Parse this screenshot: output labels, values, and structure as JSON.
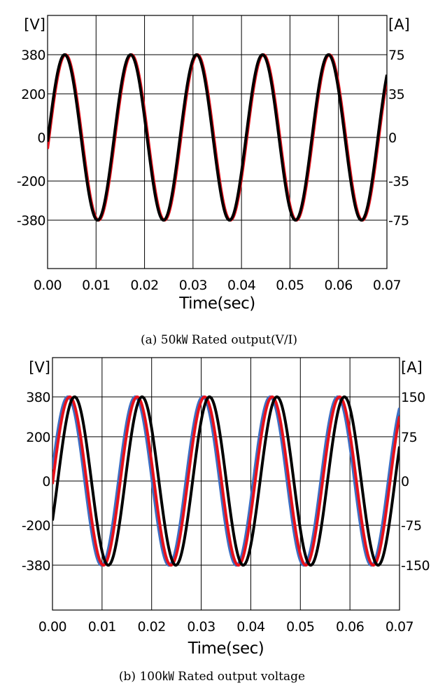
{
  "chart_data": [
    {
      "type": "line",
      "caption": "(a)  50㎾ Rated output(V/I)",
      "left_unit": "[V]",
      "right_unit": "[A]",
      "xlabel": "Time(sec)",
      "xlim": [
        0,
        0.07
      ],
      "x_ticks": [
        "0.00",
        "0.01",
        "0.02",
        "0.03",
        "0.04",
        "0.05",
        "0.06",
        "0.07"
      ],
      "left_ylim": [
        -600,
        600
      ],
      "left_ticks": [
        {
          "value": 380,
          "label": "380"
        },
        {
          "value": 200,
          "label": "200"
        },
        {
          "value": 0,
          "label": "0"
        },
        {
          "value": -200,
          "label": "-200"
        },
        {
          "value": -380,
          "label": "-380"
        }
      ],
      "right_ticks": [
        "75",
        "35",
        "0",
        "-35",
        "-75"
      ],
      "grid": true,
      "series": [
        {
          "color": "#e8101a",
          "amplitude": 380,
          "frequency_hz": 73.5,
          "phase_deg": -8
        },
        {
          "color": "#000000",
          "amplitude": 380,
          "frequency_hz": 73.5,
          "phase_deg": -3
        }
      ]
    },
    {
      "type": "line",
      "caption": "(b)  100㎾ Rated output voltage",
      "left_unit": "[V]",
      "right_unit": "[A]",
      "xlabel": "Time(sec)",
      "xlim": [
        0,
        0.07
      ],
      "x_ticks": [
        "0.00",
        "0.01",
        "0.02",
        "0.03",
        "0.04",
        "0.05",
        "0.06",
        "0.07"
      ],
      "left_ylim": [
        -600,
        600
      ],
      "left_ticks": [
        {
          "value": 380,
          "label": "380"
        },
        {
          "value": 200,
          "label": "200"
        },
        {
          "value": 0,
          "label": "0"
        },
        {
          "value": -200,
          "label": "-200"
        },
        {
          "value": -380,
          "label": "-380"
        }
      ],
      "right_ticks": [
        "150",
        "75",
        "0",
        "-75",
        "-150"
      ],
      "grid": true,
      "series": [
        {
          "color": "#3d6fc4",
          "amplitude": 380,
          "frequency_hz": 73.5,
          "phase_deg": 8
        },
        {
          "color": "#e8101a",
          "amplitude": 380,
          "frequency_hz": 73.5,
          "phase_deg": -2
        },
        {
          "color": "#000000",
          "amplitude": 380,
          "frequency_hz": 73.5,
          "phase_deg": -28
        }
      ]
    }
  ]
}
